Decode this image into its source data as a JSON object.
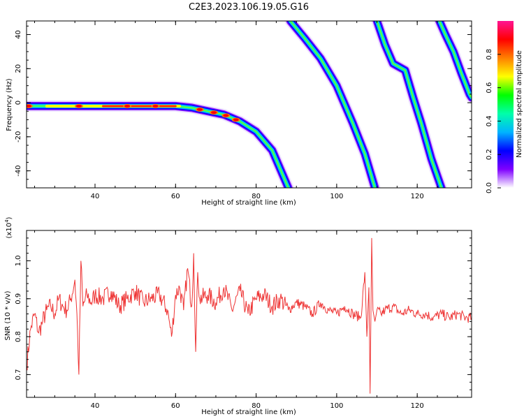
{
  "figure": {
    "title": "C2E3.2023.106.19.05.G16"
  },
  "chart_data": [
    {
      "type": "heatmap",
      "title": "",
      "xlabel": "Height of straight line (km)",
      "ylabel": "Frequency (Hz)",
      "xlim": [
        23,
        133.5
      ],
      "ylim": [
        -50,
        48
      ],
      "xticks": [
        40,
        60,
        80,
        100,
        120
      ],
      "yticks": [
        40,
        20,
        0,
        -20,
        -40
      ],
      "colorbar": {
        "label": "Normalized spectral amplitude",
        "range": [
          0,
          1
        ],
        "ticks": [
          "0.0",
          "0.2",
          "0.4",
          "0.6",
          "0.8"
        ],
        "colors": [
          "#ffffff",
          "#7f00ff",
          "#0000ff",
          "#00b4ff",
          "#00ffaa",
          "#00ff00",
          "#ffff00",
          "#ff8000",
          "#ff0000",
          "#ff1493"
        ]
      },
      "ridges": [
        {
          "points": [
            [
              23,
              -2
            ],
            [
              60,
              -2
            ],
            [
              64,
              -3
            ],
            [
              68,
              -5
            ],
            [
              72,
              -7
            ],
            [
              76,
              -11
            ],
            [
              80,
              -17
            ],
            [
              84,
              -28
            ],
            [
              88,
              -50
            ]
          ]
        },
        {
          "points": [
            [
              88.5,
              48
            ],
            [
              92,
              38
            ],
            [
              96,
              26
            ],
            [
              100,
              10
            ],
            [
              104,
              -12
            ],
            [
              107,
              -30
            ],
            [
              109.5,
              -50
            ]
          ]
        },
        {
          "points": [
            [
              110,
              48
            ],
            [
              112,
              34
            ],
            [
              114,
              23
            ],
            [
              117,
              19
            ],
            [
              119,
              3
            ],
            [
              121,
              -12
            ],
            [
              123.5,
              -33
            ],
            [
              126,
              -50
            ]
          ]
        },
        {
          "points": [
            [
              125.5,
              48
            ],
            [
              127,
              40
            ],
            [
              129,
              30
            ],
            [
              131,
              17
            ],
            [
              133,
              5
            ],
            [
              133.5,
              3
            ]
          ]
        }
      ],
      "hotspots_x": [
        23.5,
        36,
        48,
        55,
        66,
        69.5,
        72.5,
        75
      ]
    },
    {
      "type": "line",
      "title": "",
      "xlabel": "Height of straight line (km)",
      "ylabel": "SNR (10 * v/v)",
      "scale_label": "(x10",
      "scale_exponent": "4",
      "scale_close": ")",
      "xlim": [
        23,
        133.5
      ],
      "ylim": [
        0.64,
        1.08
      ],
      "xticks": [
        40,
        60,
        80,
        100,
        120
      ],
      "yticks": [
        1.0,
        0.9,
        0.8,
        0.7
      ],
      "ytick_labels": [
        "1.0",
        "0.9",
        "0.8",
        "0.7"
      ],
      "color": "#ee3333",
      "series": [
        {
          "x": [
            23,
            24,
            25,
            26,
            27,
            28,
            29,
            30,
            31,
            32,
            33,
            34,
            35,
            35.5,
            36,
            36.5,
            37,
            38,
            39,
            40,
            42,
            44,
            46,
            48,
            50,
            52,
            54,
            56,
            58,
            59,
            60,
            61,
            62,
            63,
            64,
            64.5,
            65,
            65.5,
            66,
            68,
            70,
            72,
            74,
            76,
            78,
            80,
            82,
            84,
            86,
            88,
            90,
            92,
            94,
            96,
            98,
            100,
            102,
            104,
            106,
            107,
            107.5,
            108,
            108.3,
            108.7,
            109,
            109.5,
            110,
            111,
            112,
            114,
            116,
            118,
            120,
            122,
            124,
            126,
            128,
            130,
            132,
            133.5
          ],
          "y": [
            0.72,
            0.82,
            0.86,
            0.81,
            0.84,
            0.87,
            0.88,
            0.86,
            0.9,
            0.88,
            0.87,
            0.9,
            0.95,
            0.86,
            0.7,
            1.0,
            0.88,
            0.91,
            0.89,
            0.91,
            0.9,
            0.92,
            0.88,
            0.9,
            0.92,
            0.89,
            0.9,
            0.91,
            0.87,
            0.8,
            0.91,
            0.93,
            0.87,
            0.98,
            0.88,
            1.02,
            0.76,
            0.97,
            0.9,
            0.91,
            0.89,
            0.93,
            0.87,
            0.92,
            0.86,
            0.9,
            0.91,
            0.88,
            0.9,
            0.87,
            0.89,
            0.88,
            0.86,
            0.89,
            0.87,
            0.86,
            0.88,
            0.86,
            0.85,
            0.97,
            0.8,
            0.93,
            0.65,
            1.06,
            0.87,
            0.84,
            0.87,
            0.86,
            0.87,
            0.88,
            0.86,
            0.87,
            0.86,
            0.86,
            0.85,
            0.86,
            0.85,
            0.86,
            0.85,
            0.85
          ]
        }
      ]
    }
  ]
}
